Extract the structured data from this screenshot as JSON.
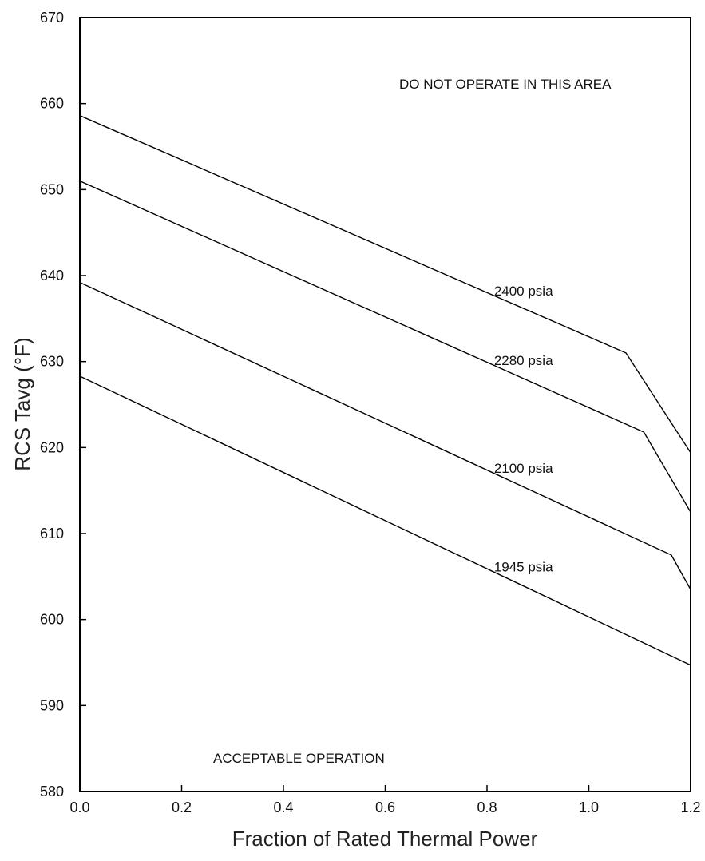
{
  "chart_data": {
    "type": "line",
    "xlabel": "Fraction of Rated Thermal Power",
    "ylabel": "RCS Tavg (°F)",
    "xlim": [
      0.0,
      1.2
    ],
    "ylim": [
      580,
      670
    ],
    "x_ticks": [
      "0.0",
      "0.2",
      "0.4",
      "0.6",
      "0.8",
      "1.0",
      "1.2"
    ],
    "y_ticks": [
      "580",
      "590",
      "600",
      "610",
      "620",
      "630",
      "640",
      "650",
      "660",
      "670"
    ],
    "grid": false,
    "series": [
      {
        "name": "2400 psia",
        "x": [
          0.0,
          1.073,
          1.2
        ],
        "y": [
          658.6,
          631.0,
          619.4
        ]
      },
      {
        "name": "2280 psia",
        "x": [
          0.0,
          1.108,
          1.2
        ],
        "y": [
          651.0,
          621.8,
          612.5
        ]
      },
      {
        "name": "2100 psia",
        "x": [
          0.0,
          1.162,
          1.2
        ],
        "y": [
          639.2,
          607.5,
          603.5
        ]
      },
      {
        "name": "1945 psia",
        "x": [
          0.0,
          1.2
        ],
        "y": [
          628.3,
          594.7
        ]
      }
    ],
    "annotations": [
      "DO NOT OPERATE IN THIS AREA",
      "ACCEPTABLE OPERATION"
    ]
  }
}
